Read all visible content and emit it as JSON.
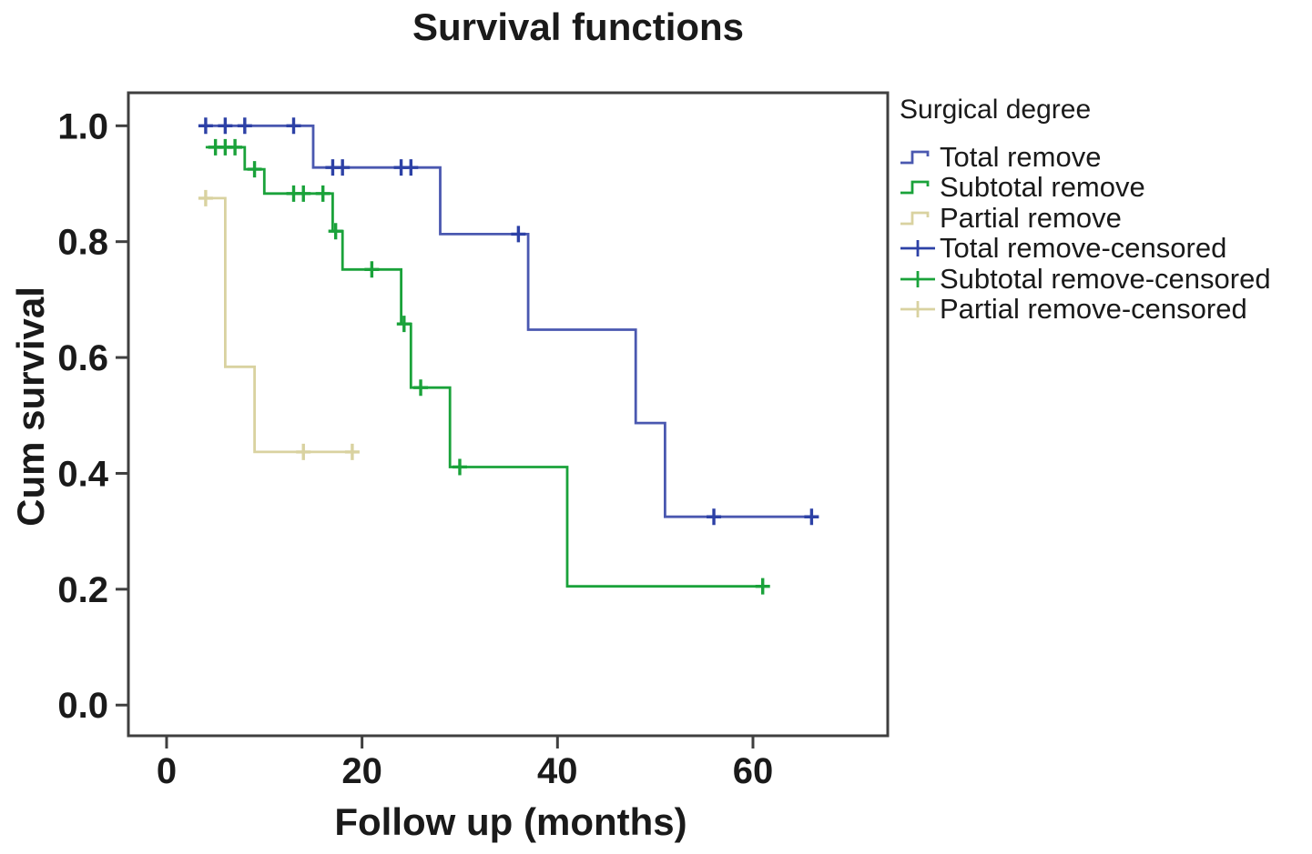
{
  "chart_data": {
    "type": "line",
    "subtype": "kaplan-meier-step",
    "title": "Survival functions",
    "xlabel": "Follow up (months)",
    "ylabel": "Cum survival",
    "grid": false,
    "xlim": [
      -3.91,
      73.79
    ],
    "ylim": [
      -0.053,
      1.057
    ],
    "frame_color": "#3f3f3f",
    "text_color": "#1a1a1a",
    "x_ticks": [
      {
        "value": 0,
        "label": "0"
      },
      {
        "value": 20,
        "label": "20"
      },
      {
        "value": 40,
        "label": "40"
      },
      {
        "value": 60,
        "label": "60"
      }
    ],
    "y_ticks": [
      {
        "value": 1.0,
        "label": "1.0"
      },
      {
        "value": 0.8,
        "label": "0.8"
      },
      {
        "value": 0.6,
        "label": "0.6"
      },
      {
        "value": 0.4,
        "label": "0.4"
      },
      {
        "value": 0.2,
        "label": "0.2"
      },
      {
        "value": 0.0,
        "label": "0.0"
      }
    ],
    "series": [
      {
        "name": "Total remove",
        "color": "#4a58b0",
        "censor_color": "#2d41a6",
        "start": [
          3.5,
          1.0
        ],
        "steps": [
          [
            15,
            0.928
          ],
          [
            28,
            0.813
          ],
          [
            37,
            0.648
          ],
          [
            48,
            0.487
          ],
          [
            51,
            0.325
          ]
        ],
        "end": 66,
        "censored": [
          [
            4,
            1.0
          ],
          [
            6,
            1.0
          ],
          [
            8,
            1.0
          ],
          [
            13,
            1.0
          ],
          [
            17,
            0.928
          ],
          [
            18,
            0.928
          ],
          [
            24,
            0.928
          ],
          [
            25,
            0.928
          ],
          [
            36,
            0.813
          ],
          [
            56,
            0.325
          ],
          [
            66,
            0.325
          ]
        ]
      },
      {
        "name": "Subtotal remove",
        "color": "#1aa23a",
        "censor_color": "#1aa23a",
        "start": [
          4,
          0.963
        ],
        "steps": [
          [
            8,
            0.925
          ],
          [
            10,
            0.883
          ],
          [
            17,
            0.818
          ],
          [
            18,
            0.752
          ],
          [
            24,
            0.658
          ],
          [
            25,
            0.548
          ],
          [
            29,
            0.411
          ],
          [
            41,
            0.205
          ]
        ],
        "end": 61,
        "censored": [
          [
            5,
            0.963
          ],
          [
            6,
            0.963
          ],
          [
            7,
            0.963
          ],
          [
            9,
            0.925
          ],
          [
            13,
            0.883
          ],
          [
            14,
            0.883
          ],
          [
            16,
            0.883
          ],
          [
            17.3,
            0.818
          ],
          [
            21,
            0.752
          ],
          [
            24.3,
            0.658
          ],
          [
            26,
            0.548
          ],
          [
            30,
            0.411
          ],
          [
            61,
            0.205
          ]
        ]
      },
      {
        "name": "Partial remove",
        "color": "#d9d2a0",
        "censor_color": "#d9d2a0",
        "start": [
          3.5,
          0.875
        ],
        "steps": [
          [
            6,
            0.584
          ],
          [
            9,
            0.437
          ]
        ],
        "end": 19,
        "censored": [
          [
            4,
            0.875
          ],
          [
            14,
            0.437
          ],
          [
            19,
            0.437
          ]
        ]
      }
    ],
    "legend": {
      "title": "Surgical degree",
      "position": "right",
      "entries": [
        {
          "label": "Total remove",
          "glyph": "step",
          "color": "#4a58b0"
        },
        {
          "label": "Subtotal remove",
          "glyph": "step",
          "color": "#1aa23a"
        },
        {
          "label": "Partial remove",
          "glyph": "step",
          "color": "#d9d2a0"
        },
        {
          "label": "Total remove-censored",
          "glyph": "plus",
          "color": "#2d41a6"
        },
        {
          "label": "Subtotal remove-censored",
          "glyph": "plus",
          "color": "#1aa23a"
        },
        {
          "label": "Partial remove-censored",
          "glyph": "plus",
          "color": "#d9d2a0"
        }
      ]
    }
  }
}
